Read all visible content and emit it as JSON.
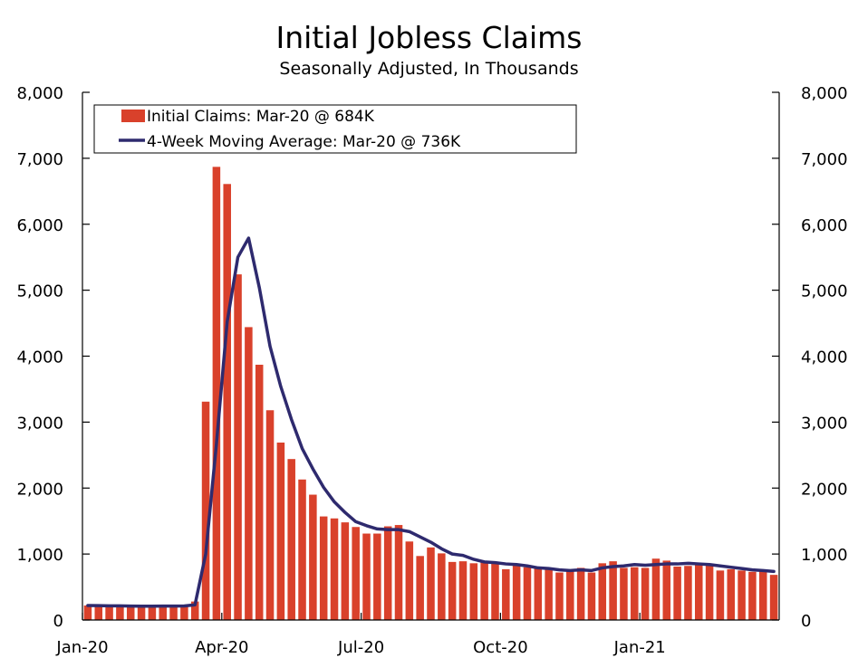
{
  "chart_data": {
    "type": "bar",
    "title": "Initial Jobless Claims",
    "subtitle": "Seasonally Adjusted, In Thousands",
    "ylim": [
      0,
      8000
    ],
    "yticks": [
      "0",
      "1,000",
      "2,000",
      "3,000",
      "4,000",
      "5,000",
      "6,000",
      "7,000",
      "8,000"
    ],
    "ytick_values": [
      0,
      1000,
      2000,
      3000,
      4000,
      5000,
      6000,
      7000,
      8000
    ],
    "xticks": [
      {
        "label": "Jan-20",
        "week": 0
      },
      {
        "label": "Apr-20",
        "week": 13
      },
      {
        "label": "Jul-20",
        "week": 26
      },
      {
        "label": "Oct-20",
        "week": 39
      },
      {
        "label": "Jan-21",
        "week": 52
      }
    ],
    "num_weeks": 65,
    "legend_position": "top-left",
    "series": [
      {
        "name": "Initial Claims: Mar-20 @ 684K",
        "kind": "bar",
        "color": "#D9412B",
        "values": [
          220,
          215,
          210,
          210,
          205,
          210,
          215,
          210,
          210,
          220,
          280,
          3310,
          6870,
          6610,
          5240,
          4440,
          3870,
          3180,
          2690,
          2440,
          2130,
          1900,
          1570,
          1540,
          1480,
          1410,
          1310,
          1310,
          1420,
          1440,
          1190,
          970,
          1100,
          1010,
          880,
          890,
          860,
          880,
          860,
          770,
          830,
          800,
          780,
          780,
          720,
          740,
          790,
          720,
          860,
          890,
          790,
          800,
          790,
          930,
          900,
          810,
          820,
          830,
          830,
          750,
          770,
          750,
          730,
          740,
          684
        ]
      },
      {
        "name": "4-Week Moving Average: Mar-20 @ 736K",
        "kind": "line",
        "color": "#2E2A6E",
        "values": [
          220,
          218,
          215,
          214,
          211,
          209,
          210,
          211,
          211,
          213,
          230,
          1000,
          2670,
          4520,
          5500,
          5790,
          5040,
          4150,
          3540,
          3040,
          2600,
          2290,
          2010,
          1790,
          1630,
          1490,
          1430,
          1380,
          1370,
          1370,
          1340,
          1260,
          1180,
          1080,
          1000,
          980,
          920,
          880,
          870,
          850,
          840,
          820,
          790,
          780,
          760,
          750,
          760,
          750,
          790,
          810,
          820,
          840,
          830,
          840,
          850,
          850,
          860,
          850,
          840,
          820,
          800,
          780,
          760,
          750,
          736
        ]
      }
    ]
  }
}
